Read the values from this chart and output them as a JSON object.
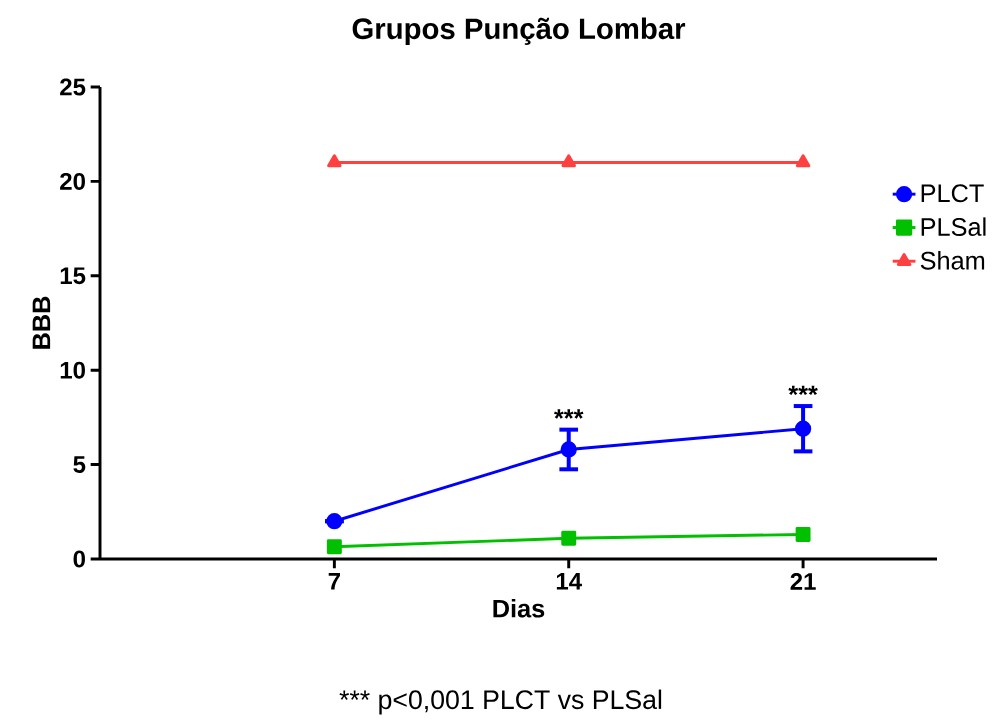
{
  "chart_data": {
    "type": "line",
    "title": "Grupos Punção Lombar",
    "xlabel": "Dias",
    "ylabel": "BBB",
    "x": [
      7,
      14,
      21
    ],
    "series": [
      {
        "name": "PLCT",
        "color": "#0000ff",
        "marker": "circle",
        "values": [
          2.0,
          5.8,
          6.9
        ],
        "errors": [
          null,
          1.05,
          1.2
        ]
      },
      {
        "name": "PLSal",
        "color": "#00c000",
        "marker": "square",
        "values": [
          0.65,
          1.1,
          1.3
        ]
      },
      {
        "name": "Sham",
        "color": "#ff4040",
        "marker": "triangle",
        "values": [
          21,
          21,
          21
        ]
      }
    ],
    "xlim": [
      0,
      25
    ],
    "xticks": [
      7,
      14,
      21
    ],
    "ylim": [
      0,
      25
    ],
    "yticks": [
      0,
      5,
      10,
      15,
      20,
      25
    ],
    "grid": false,
    "legend": "right",
    "line_style": "solid",
    "annotations": [
      {
        "text": "***",
        "x": 14,
        "y": 6.85
      },
      {
        "text": "***",
        "x": 21,
        "y": 8.1
      },
      "*** p<0,001 PLCT vs PLSal"
    ]
  }
}
